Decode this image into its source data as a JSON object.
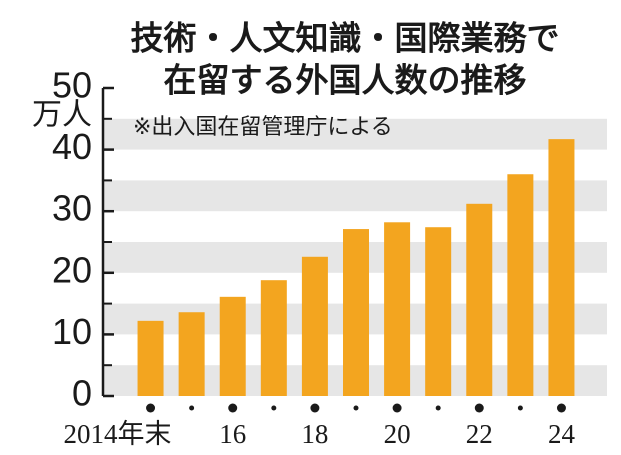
{
  "chart_data": {
    "type": "bar",
    "title": [
      "技術・人文知識・国際業務で",
      "在留する外国人数の推移"
    ],
    "y_unit": "万人",
    "source": "※出入国在留管理庁による",
    "categories": [
      "2014年末",
      null,
      "16",
      null,
      "18",
      null,
      "20",
      null,
      "22",
      null,
      "24"
    ],
    "values": [
      12.2,
      13.6,
      16.1,
      18.8,
      22.6,
      27.1,
      28.2,
      27.4,
      31.2,
      36.0,
      41.7
    ],
    "color": "#f3a51f",
    "ylim": [
      0,
      50
    ],
    "yticks": [
      0,
      10,
      20,
      30,
      40,
      50
    ],
    "stripe_color": "#e6e6e6"
  }
}
